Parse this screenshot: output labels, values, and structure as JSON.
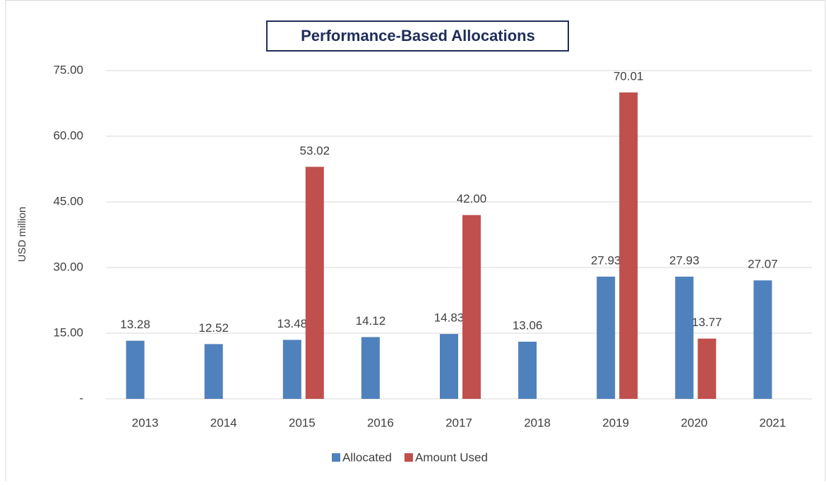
{
  "chart_data": {
    "type": "bar",
    "title": "Performance-Based Allocations",
    "y_label": "USD million",
    "categories": [
      "2013",
      "2014",
      "2015",
      "2016",
      "2017",
      "2018",
      "2019",
      "2020",
      "2021"
    ],
    "series": [
      {
        "name": "Allocated",
        "color": "#4f81bd",
        "values": [
          13.28,
          12.52,
          13.48,
          14.12,
          14.83,
          13.06,
          27.93,
          27.93,
          27.07
        ],
        "value_labels": [
          "13.28",
          "12.52",
          "13.48",
          "14.12",
          "14.83",
          "13.06",
          "27.93",
          "27.93",
          "27.07"
        ]
      },
      {
        "name": "Amount Used",
        "color": "#c0504d",
        "values": [
          null,
          null,
          53.02,
          null,
          42.0,
          null,
          70.01,
          13.77,
          null
        ],
        "value_labels": [
          null,
          null,
          "53.02",
          null,
          "42.00",
          null,
          "70.01",
          "13.77",
          null
        ]
      }
    ],
    "ylim": [
      0,
      75
    ],
    "yticks": [
      {
        "value": 0,
        "label": "-"
      },
      {
        "value": 15,
        "label": "15.00"
      },
      {
        "value": 30,
        "label": "30.00"
      },
      {
        "value": 45,
        "label": "45.00"
      },
      {
        "value": 60,
        "label": "60.00"
      },
      {
        "value": 75,
        "label": "75.00"
      }
    ],
    "grid": true,
    "legend": "bottom"
  }
}
